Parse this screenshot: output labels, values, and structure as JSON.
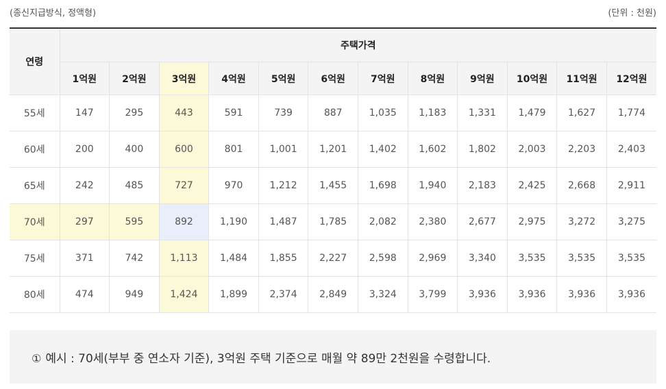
{
  "caption": {
    "left": "(종신지급방식, 정액형)",
    "right": "(단위 : 천원)"
  },
  "table": {
    "age_header": "연령",
    "price_header": "주택가격",
    "columns": [
      "1억원",
      "2억원",
      "3억원",
      "4억원",
      "5억원",
      "6억원",
      "7억원",
      "8억원",
      "9억원",
      "10억원",
      "11억원",
      "12억원"
    ],
    "highlight_column_index": 2,
    "highlight_row_index": 3,
    "rows": [
      {
        "age": "55세",
        "values": [
          "147",
          "295",
          "443",
          "591",
          "739",
          "887",
          "1,035",
          "1,183",
          "1,331",
          "1,479",
          "1,627",
          "1,774"
        ]
      },
      {
        "age": "60세",
        "values": [
          "200",
          "400",
          "600",
          "801",
          "1,001",
          "1,201",
          "1,402",
          "1,602",
          "1,802",
          "2,003",
          "2,203",
          "2,403"
        ]
      },
      {
        "age": "65세",
        "values": [
          "242",
          "485",
          "727",
          "970",
          "1,212",
          "1,455",
          "1,698",
          "1,940",
          "2,183",
          "2,425",
          "2,668",
          "2,911"
        ]
      },
      {
        "age": "70세",
        "values": [
          "297",
          "595",
          "892",
          "1,190",
          "1,487",
          "1,785",
          "2,082",
          "2,380",
          "2,677",
          "2,975",
          "3,272",
          "3,275"
        ]
      },
      {
        "age": "75세",
        "values": [
          "371",
          "742",
          "1,113",
          "1,484",
          "1,855",
          "2,227",
          "2,598",
          "2,969",
          "3,340",
          "3,535",
          "3,535",
          "3,535"
        ]
      },
      {
        "age": "80세",
        "values": [
          "474",
          "949",
          "1,424",
          "1,899",
          "2,374",
          "2,849",
          "3,324",
          "3,799",
          "3,936",
          "3,936",
          "3,936",
          "3,936"
        ]
      }
    ]
  },
  "note": {
    "icon": "①",
    "icon_name": "info-circle-icon",
    "text": "예시 : 70세(부부 중 연소자 기준), 3억원 주택 기준으로 매월 약 89만 2천원을 수령합니다."
  },
  "colors": {
    "highlight_yellow": "#fcf9d8",
    "highlight_blue": "#e8eefa",
    "header_bg": "#f4f4f4",
    "note_bg": "#f4f4f4"
  }
}
